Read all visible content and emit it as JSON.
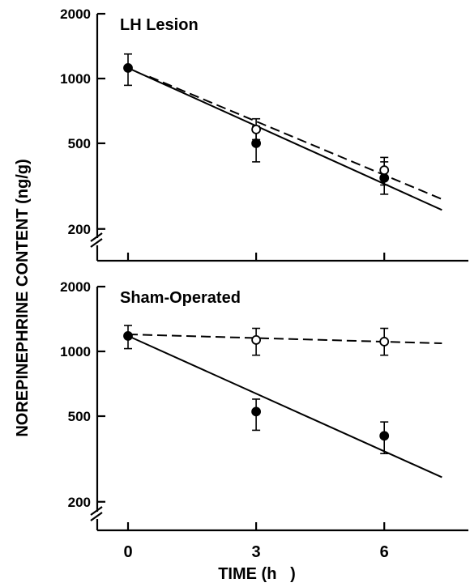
{
  "chart_data": {
    "type": "scatter",
    "scale": "log-y",
    "xlabel": "TIME (h   )",
    "ylabel": "NOREPINEPHRINE CONTENT (ng/g)",
    "x_ticks": [
      0,
      3,
      6
    ],
    "y_ticks": [
      200,
      500,
      1000,
      2000
    ],
    "xlim": [
      -0.2,
      7.9
    ],
    "ylim": [
      170,
      2000
    ],
    "panels": [
      {
        "title": "LH Lesion",
        "series": [
          {
            "marker": "filled-circle",
            "line": "solid",
            "points": [
              {
                "x": 0,
                "y": 1120,
                "err_low": 930,
                "err_high": 1300
              },
              {
                "x": 3,
                "y": 500,
                "err_low": 410,
                "err_high": 600
              },
              {
                "x": 6,
                "y": 345,
                "err_low": 290,
                "err_high": 410
              }
            ],
            "fit": [
              [
                0,
                1120
              ],
              [
                7.35,
                245
              ]
            ]
          },
          {
            "marker": "open-circle",
            "line": "dashed",
            "points": [
              {
                "x": 3,
                "y": 580,
                "err_low": 520,
                "err_high": 650
              },
              {
                "x": 6,
                "y": 375,
                "err_low": 320,
                "err_high": 430
              }
            ],
            "fit": [
              [
                0.5,
                1020
              ],
              [
                7.35,
                275
              ]
            ]
          }
        ]
      },
      {
        "title": "Sham-Operated",
        "series": [
          {
            "marker": "filled-circle",
            "line": "solid",
            "points": [
              {
                "x": 0,
                "y": 1180,
                "err_low": 1030,
                "err_high": 1320
              },
              {
                "x": 3,
                "y": 525,
                "err_low": 430,
                "err_high": 600
              },
              {
                "x": 6,
                "y": 405,
                "err_low": 335,
                "err_high": 470
              }
            ],
            "fit": [
              [
                0,
                1180
              ],
              [
                7.35,
                260
              ]
            ]
          },
          {
            "marker": "open-circle",
            "line": "dashed",
            "points": [
              {
                "x": 3,
                "y": 1130,
                "err_low": 960,
                "err_high": 1280
              },
              {
                "x": 6,
                "y": 1110,
                "err_low": 960,
                "err_high": 1280
              }
            ],
            "fit": [
              [
                0,
                1200
              ],
              [
                7.35,
                1090
              ]
            ]
          }
        ]
      }
    ]
  }
}
